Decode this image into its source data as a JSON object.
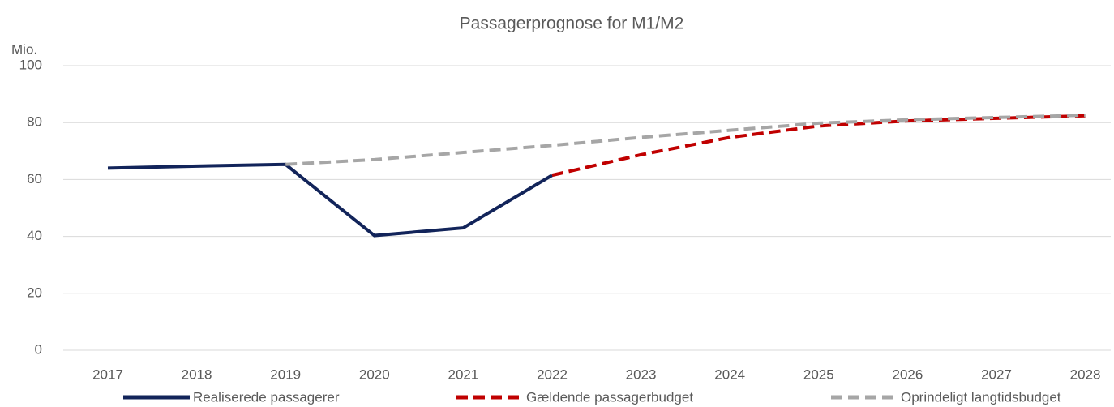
{
  "chart_data": {
    "type": "line",
    "title": "Passagerprognose for M1/M2",
    "y_label": "Mio.",
    "categories": [
      "2017",
      "2018",
      "2019",
      "2020",
      "2021",
      "2022",
      "2023",
      "2024",
      "2025",
      "2026",
      "2027",
      "2028"
    ],
    "series": [
      {
        "name": "Realiserede passagerer",
        "color": "#12245a",
        "dash": "solid",
        "values": [
          64,
          64.7,
          65.3,
          40.3,
          43,
          61.5,
          null,
          null,
          null,
          null,
          null,
          null
        ]
      },
      {
        "name": "Gældende passagerbudget",
        "color": "#c00000",
        "dash": "dashed",
        "values": [
          null,
          null,
          null,
          null,
          null,
          61.5,
          68.7,
          74.8,
          78.8,
          80.6,
          81.5,
          82.4
        ]
      },
      {
        "name": "Oprindeligt langtidsbudget",
        "color": "#a6a6a6",
        "dash": "dashed",
        "values": [
          null,
          null,
          65.3,
          67,
          69.5,
          72,
          74.8,
          77.3,
          79.8,
          81,
          81.8,
          82.6
        ]
      }
    ],
    "ylim": [
      0,
      100
    ],
    "yticks": [
      0,
      20,
      40,
      60,
      80,
      100
    ],
    "grid": true,
    "legend": "bottom"
  }
}
